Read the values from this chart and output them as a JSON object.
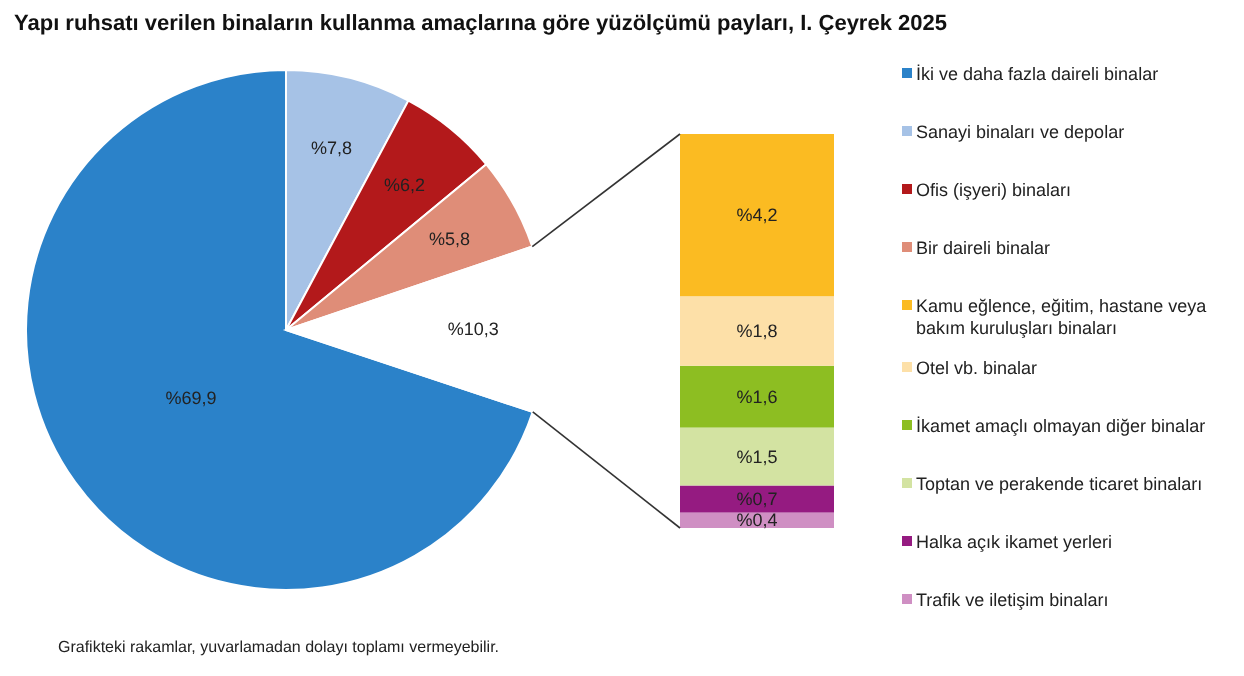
{
  "chart_data": [
    {
      "type": "pie",
      "title": "Yapı ruhsatı verilen binaların kullanma amaçlarına göre yüzölçümü payları, I. Çeyrek 2025",
      "categories": [
        "İki ve daha fazla daireli binalar",
        "Sanayi binaları ve depolar",
        "Ofis (işyeri) binaları",
        "Bir daireli binalar",
        null
      ],
      "values": [
        69.9,
        7.8,
        6.2,
        5.8,
        10.3
      ],
      "value_labels": [
        "%69,9",
        "%7,8",
        "%6,2",
        "%5,8",
        "%10,3"
      ],
      "colors": [
        "#2b82c9",
        "#a6c2e6",
        "#b3191b",
        "#df8d78",
        "#ffffff"
      ],
      "legend": "right",
      "annotations": [
        "Grafikteki rakamlar, yuvarlamadan dolayı toplamı vermeyebilir."
      ]
    },
    {
      "type": "bar",
      "stacked": true,
      "categories": [
        null
      ],
      "legend": "right",
      "series": [
        {
          "name": "Trafik ve iletişim binaları",
          "color": "#cf8fc3",
          "values": [
            0.4
          ],
          "value_labels": [
            "%0,4"
          ]
        },
        {
          "name": "Halka açık ikamet yerleri",
          "color": "#951b81",
          "values": [
            0.7
          ],
          "value_labels": [
            "%0,7"
          ]
        },
        {
          "name": "Toptan ve perakende ticaret binaları",
          "color": "#d3e3a2",
          "values": [
            1.5
          ],
          "value_labels": [
            "%1,5"
          ]
        },
        {
          "name": "İkamet amaçlı olmayan diğer binalar",
          "color": "#8dbe22",
          "values": [
            1.6
          ],
          "value_labels": [
            "%1,6"
          ]
        },
        {
          "name": "Otel vb. binalar",
          "color": "#fde0a8",
          "values": [
            1.8
          ],
          "value_labels": [
            "%1,8"
          ]
        },
        {
          "name": "Kamu eğlence, eğitim, hastane veya bakım kuruluşları binaları",
          "color": "#fbbb22",
          "values": [
            4.2
          ],
          "value_labels": [
            "%4,2"
          ]
        }
      ]
    }
  ]
}
